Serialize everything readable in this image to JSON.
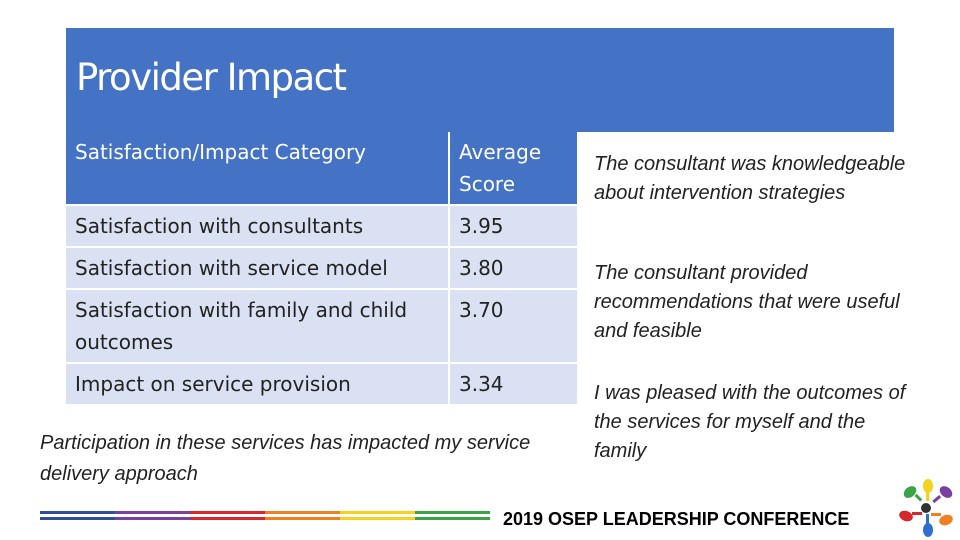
{
  "slide": {
    "title": "Provider Impact"
  },
  "table": {
    "headers": [
      "Satisfaction/Impact Category",
      "Average Score"
    ],
    "rows": [
      {
        "category": "Satisfaction with consultants",
        "score": "3.95"
      },
      {
        "category": "Satisfaction with service model",
        "score": "3.80"
      },
      {
        "category": "Satisfaction with family and child outcomes",
        "score": "3.70"
      },
      {
        "category": "Impact on service provision",
        "score": "3.34"
      }
    ]
  },
  "quotes": {
    "bottom": "Participation in these services has impacted my service delivery approach",
    "side": [
      "The consultant was knowledgeable about intervention strategies",
      "The consultant provided recommendations that were useful and feasible",
      "I was pleased with the outcomes of the services for myself and the family"
    ]
  },
  "footer": {
    "text": "2019 OSEP LEADERSHIP CONFERENCE"
  },
  "colors": {
    "header_blue": "#4472c4",
    "row_fill": "#d9e1f2",
    "stripe_colors": [
      "#2f4f9a",
      "#7b3fa0",
      "#d8262e",
      "#f07f22",
      "#f5d31c",
      "#3aa447"
    ]
  },
  "logo_icon": "colorful-hands-logo-icon"
}
